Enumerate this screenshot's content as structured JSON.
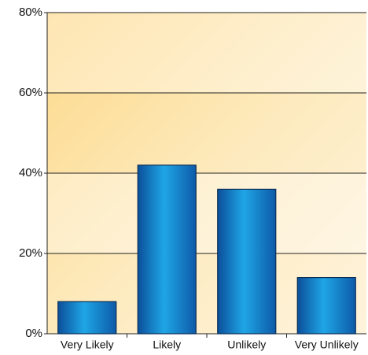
{
  "chart_data": {
    "type": "bar",
    "categories": [
      "Very Likely",
      "Likely",
      "Unlikely",
      "Very Unlikely"
    ],
    "values": [
      8,
      42,
      36,
      14
    ],
    "color": "#1a8fd6",
    "ylim": [
      0,
      80
    ],
    "yticks": [
      {
        "value": 0,
        "label": "0%"
      },
      {
        "value": 20,
        "label": "20%"
      },
      {
        "value": 40,
        "label": "40%"
      },
      {
        "value": 60,
        "label": "60%"
      },
      {
        "value": 80,
        "label": "80%"
      }
    ],
    "grid": true
  }
}
